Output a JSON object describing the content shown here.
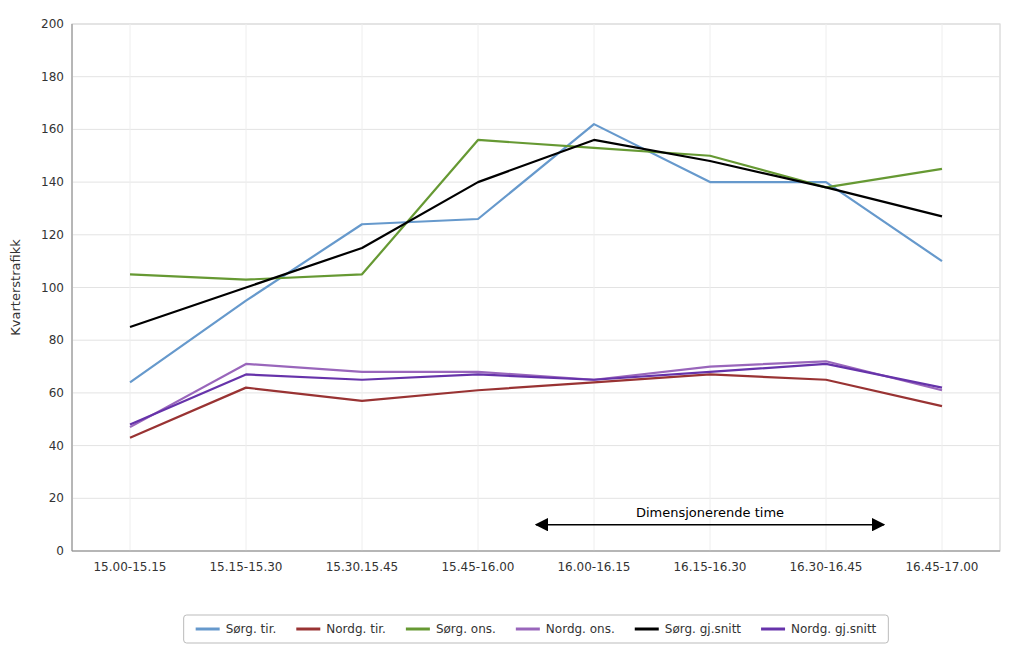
{
  "chart_data": {
    "type": "line",
    "ylabel": "Kvarterstrafikk",
    "categories": [
      "15.00-15.15",
      "15.15-15.30",
      "15.30.15.45",
      "15.45-16.00",
      "16.00-16.15",
      "16.15-16.30",
      "16.30-16.45",
      "16.45-17.00"
    ],
    "series": [
      {
        "name": "Sørg. tir.",
        "color": "#6699CC",
        "values": [
          64,
          95,
          124,
          126,
          162,
          140,
          140,
          110
        ]
      },
      {
        "name": "Nordg. tir.",
        "color": "#993333",
        "values": [
          43,
          62,
          57,
          61,
          64,
          67,
          65,
          55
        ]
      },
      {
        "name": "Sørg. ons.",
        "color": "#669933",
        "values": [
          105,
          103,
          105,
          156,
          153,
          150,
          138,
          145
        ]
      },
      {
        "name": "Nordg. ons.",
        "color": "#9966BB",
        "values": [
          47,
          71,
          68,
          68,
          65,
          70,
          72,
          61
        ]
      },
      {
        "name": "Sørg. gj.snitt",
        "color": "#000000",
        "values": [
          85,
          100,
          115,
          140,
          156,
          148,
          138,
          127
        ]
      },
      {
        "name": "Nordg. gj.snitt",
        "color": "#6633AA",
        "values": [
          48,
          67,
          65,
          67,
          65,
          68,
          71,
          62
        ]
      }
    ],
    "ylim": [
      0,
      200
    ],
    "yticks": [
      0,
      20,
      40,
      60,
      80,
      100,
      120,
      140,
      160,
      180,
      200
    ],
    "grid": true,
    "legend": "bottom",
    "annotations": [
      {
        "text": "Dimensjonerende time",
        "x": [
          3.5,
          6.5
        ],
        "y": 10
      }
    ]
  }
}
